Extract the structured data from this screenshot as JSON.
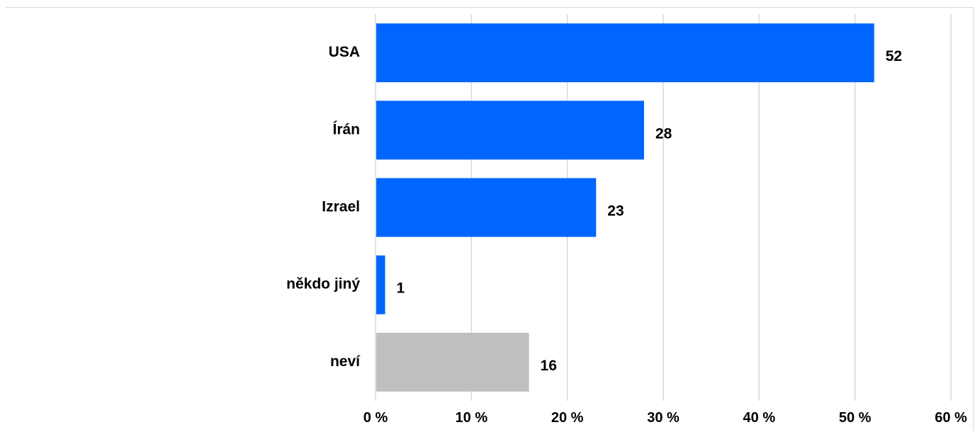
{
  "chart_data": {
    "type": "bar",
    "orientation": "horizontal",
    "categories": [
      "USA",
      "Írán",
      "Izrael",
      "někdo jiný",
      "neví"
    ],
    "values": [
      52,
      28,
      23,
      1,
      16
    ],
    "value_labels": [
      "52",
      "28",
      "23",
      "1",
      "16"
    ],
    "x_ticks": [
      0,
      10,
      20,
      30,
      40,
      50,
      60
    ],
    "x_tick_labels": [
      "0 %",
      "10 %",
      "20 %",
      "30 %",
      "40 %",
      "50 %",
      "60 %"
    ],
    "xlim": [
      0,
      60
    ],
    "title": "",
    "xlabel": "",
    "ylabel": "",
    "grid": "vertical",
    "legend": "none",
    "colors": [
      "#0066ff",
      "#0066ff",
      "#0066ff",
      "#0066ff",
      "#bfbfbf"
    ]
  }
}
